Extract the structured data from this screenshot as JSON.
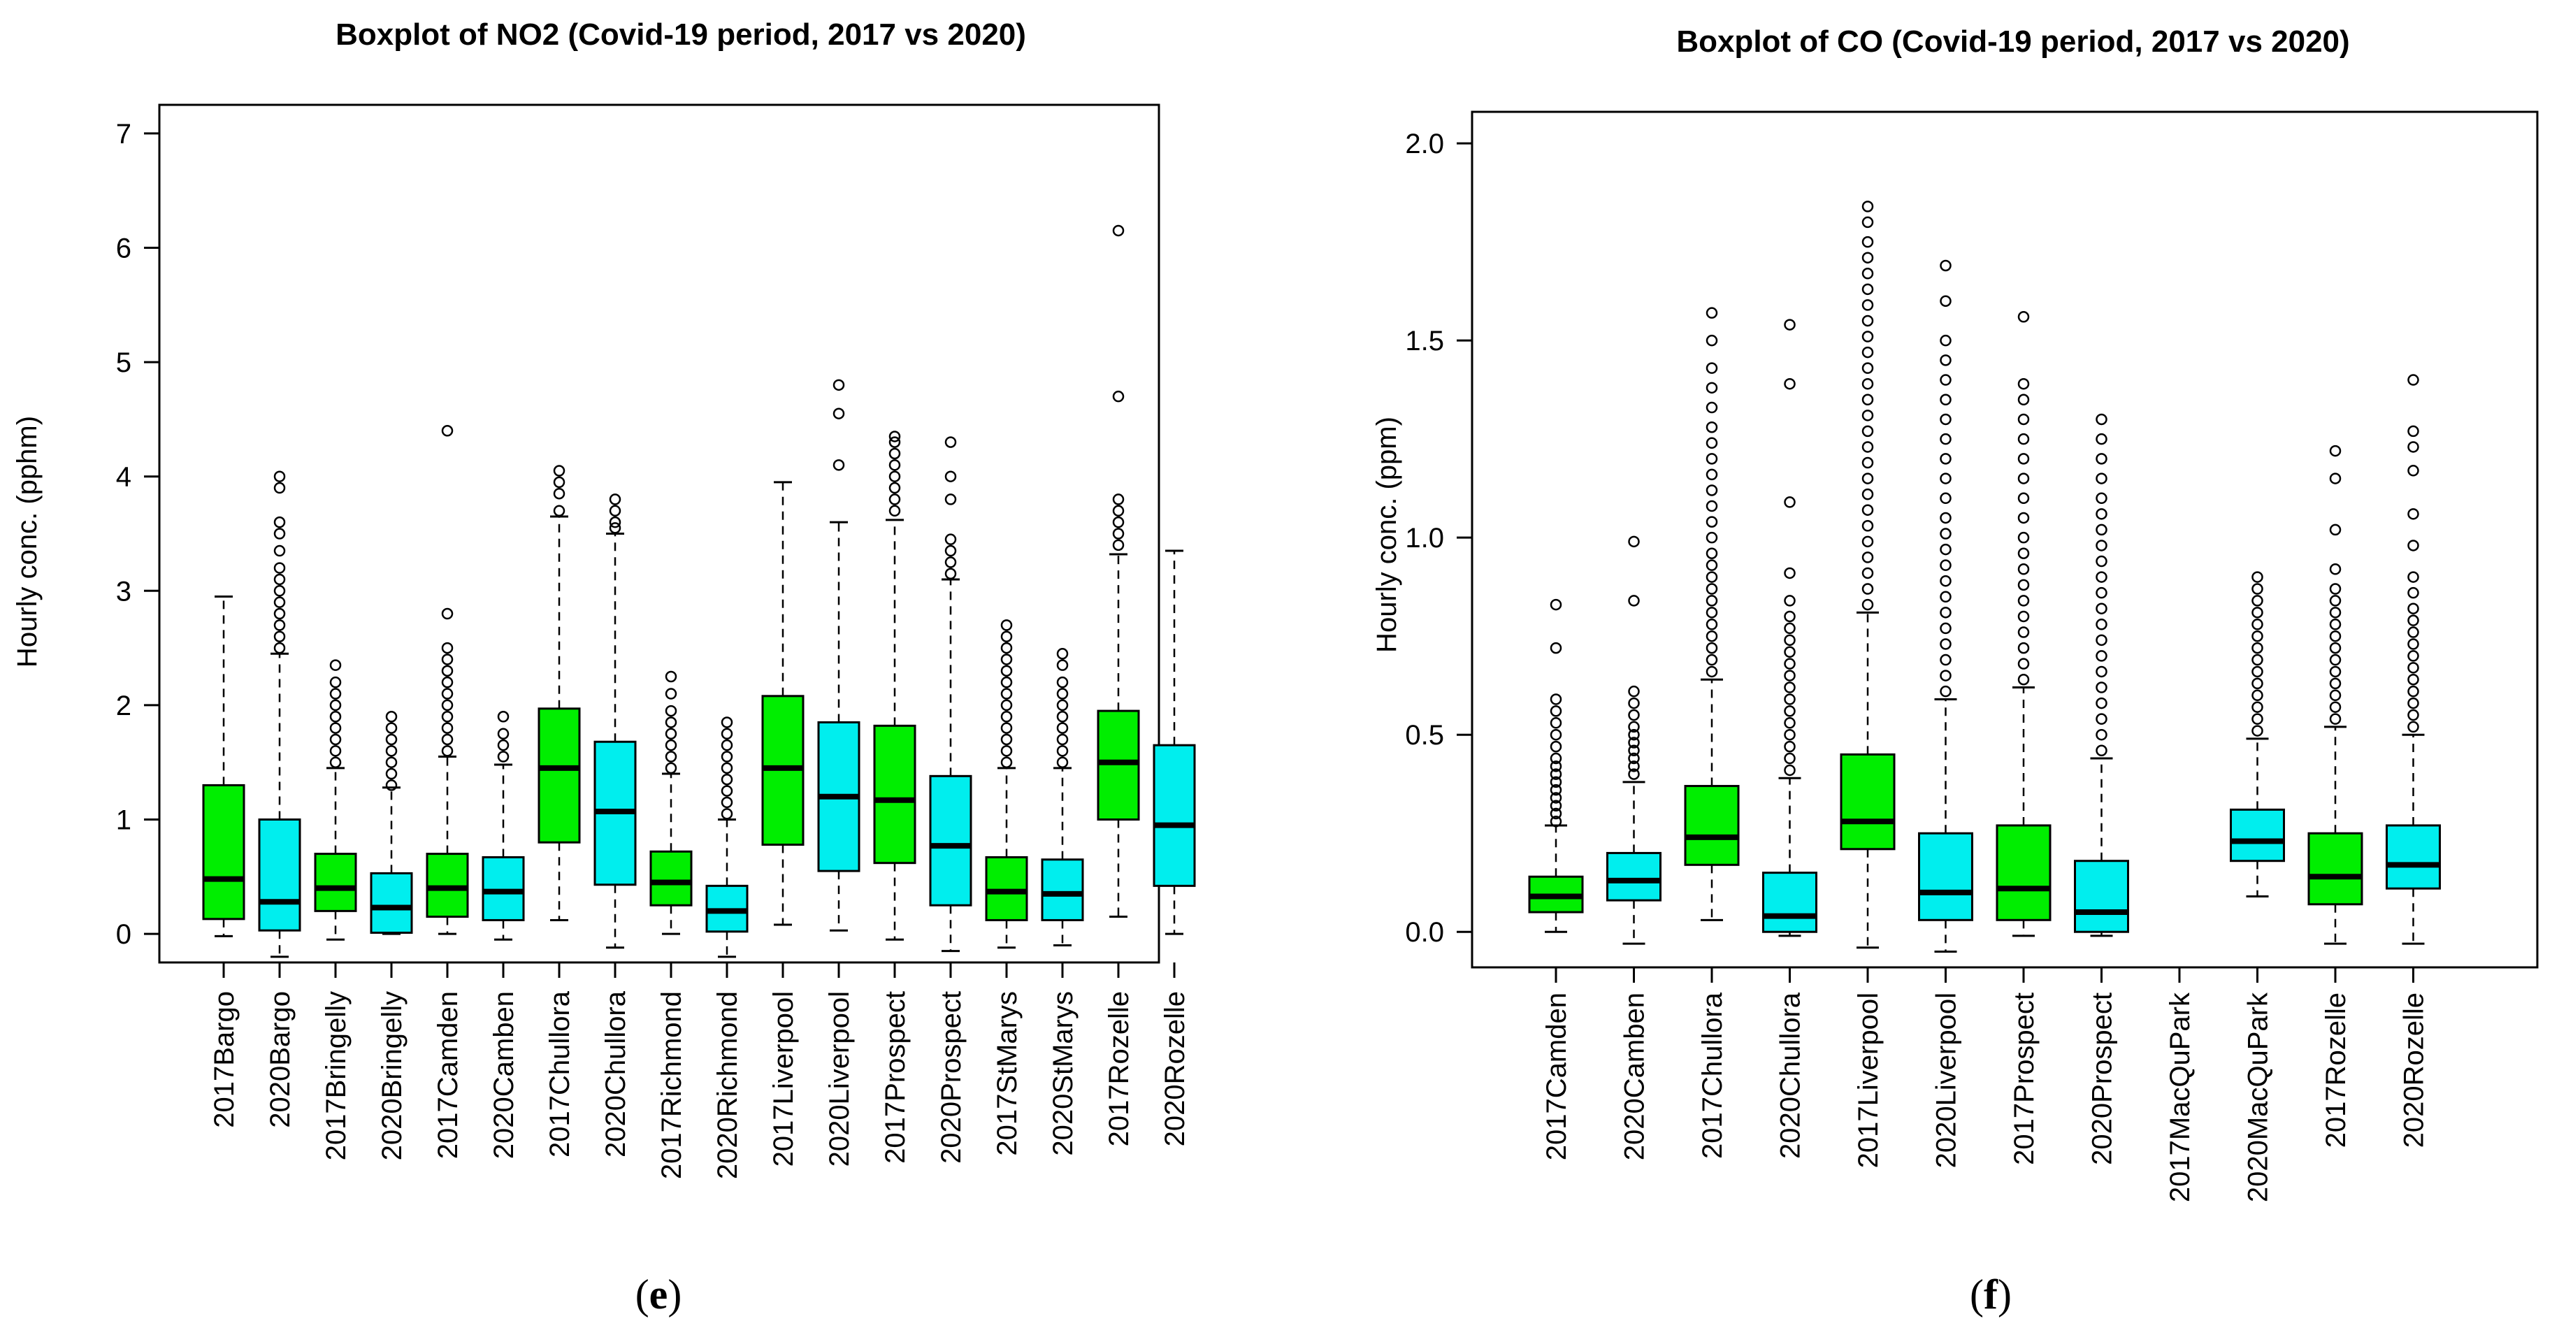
{
  "chart_data": [
    {
      "type": "boxplot",
      "panel": "e",
      "title": "Boxplot of NO2 (Covid-19 period, 2017 vs 2020)",
      "xlabel": "",
      "ylabel": "Hourly conc. (pphm)",
      "ylim": [
        -0.25,
        7.25
      ],
      "yticks": [
        0,
        1,
        2,
        3,
        4,
        5,
        6,
        7
      ],
      "categories": [
        "2017Bargo",
        "2020Bargo",
        "2017Bringelly",
        "2020Bringelly",
        "2017Camden",
        "2020Camben",
        "2017Chullora",
        "2020Chullora",
        "2017Richmond",
        "2020Richmond",
        "2017Liverpool",
        "2020Liverpool",
        "2017Prospect",
        "2020Prospect",
        "2017StMarys",
        "2020StMarys",
        "2017Rozelle",
        "2020Rozelle"
      ],
      "colors": [
        "#00ee00",
        "#00eeee",
        "#00ee00",
        "#00eeee",
        "#00ee00",
        "#00eeee",
        "#00ee00",
        "#00eeee",
        "#00ee00",
        "#00eeee",
        "#00ee00",
        "#00eeee",
        "#00ee00",
        "#00eeee",
        "#00ee00",
        "#00eeee",
        "#00ee00",
        "#00eeee"
      ],
      "boxes": [
        {
          "lw": -0.02,
          "q1": 0.13,
          "med": 0.48,
          "q3": 1.3,
          "uw": 2.95,
          "fliers": []
        },
        {
          "lw": -0.2,
          "q1": 0.03,
          "med": 0.28,
          "q3": 1.0,
          "uw": 2.45,
          "fliers": [
            2.5,
            2.6,
            2.7,
            2.8,
            2.9,
            3.0,
            3.1,
            3.2,
            3.35,
            3.5,
            3.6,
            3.9,
            4.0
          ]
        },
        {
          "lw": -0.05,
          "q1": 0.2,
          "med": 0.4,
          "q3": 0.7,
          "uw": 1.45,
          "fliers": [
            1.5,
            1.6,
            1.7,
            1.8,
            1.9,
            2.0,
            2.1,
            2.2,
            2.35
          ]
        },
        {
          "lw": 0.0,
          "q1": 0.01,
          "med": 0.23,
          "q3": 0.53,
          "uw": 1.28,
          "fliers": [
            1.3,
            1.4,
            1.5,
            1.6,
            1.7,
            1.8,
            1.9
          ]
        },
        {
          "lw": 0.0,
          "q1": 0.15,
          "med": 0.4,
          "q3": 0.7,
          "uw": 1.55,
          "fliers": [
            1.6,
            1.7,
            1.8,
            1.9,
            2.0,
            2.1,
            2.2,
            2.3,
            2.4,
            2.5,
            2.8,
            4.4
          ]
        },
        {
          "lw": -0.05,
          "q1": 0.12,
          "med": 0.37,
          "q3": 0.67,
          "uw": 1.48,
          "fliers": [
            1.55,
            1.65,
            1.75,
            1.9
          ]
        },
        {
          "lw": 0.12,
          "q1": 0.8,
          "med": 1.45,
          "q3": 1.97,
          "uw": 3.65,
          "fliers": [
            3.7,
            3.85,
            3.95,
            4.05
          ]
        },
        {
          "lw": -0.12,
          "q1": 0.43,
          "med": 1.07,
          "q3": 1.68,
          "uw": 3.5,
          "fliers": [
            3.55,
            3.6,
            3.7,
            3.8
          ]
        },
        {
          "lw": 0.0,
          "q1": 0.25,
          "med": 0.45,
          "q3": 0.72,
          "uw": 1.4,
          "fliers": [
            1.45,
            1.55,
            1.65,
            1.75,
            1.85,
            1.95,
            2.1,
            2.25
          ]
        },
        {
          "lw": -0.2,
          "q1": 0.02,
          "med": 0.2,
          "q3": 0.42,
          "uw": 1.0,
          "fliers": [
            1.05,
            1.15,
            1.25,
            1.35,
            1.45,
            1.55,
            1.65,
            1.75,
            1.85
          ]
        },
        {
          "lw": 0.08,
          "q1": 0.78,
          "med": 1.45,
          "q3": 2.08,
          "uw": 3.95,
          "fliers": []
        },
        {
          "lw": 0.03,
          "q1": 0.55,
          "med": 1.2,
          "q3": 1.85,
          "uw": 3.6,
          "fliers": [
            4.1,
            4.55,
            4.8
          ]
        },
        {
          "lw": -0.05,
          "q1": 0.62,
          "med": 1.17,
          "q3": 1.82,
          "uw": 3.62,
          "fliers": [
            3.7,
            3.8,
            3.9,
            4.0,
            4.1,
            4.2,
            4.3,
            4.35
          ]
        },
        {
          "lw": -0.15,
          "q1": 0.25,
          "med": 0.77,
          "q3": 1.38,
          "uw": 3.1,
          "fliers": [
            3.15,
            3.25,
            3.35,
            3.45,
            3.8,
            4.0,
            4.3
          ]
        },
        {
          "lw": -0.12,
          "q1": 0.12,
          "med": 0.37,
          "q3": 0.67,
          "uw": 1.45,
          "fliers": [
            1.5,
            1.6,
            1.7,
            1.8,
            1.9,
            2.0,
            2.1,
            2.2,
            2.3,
            2.4,
            2.5,
            2.6,
            2.7
          ]
        },
        {
          "lw": -0.1,
          "q1": 0.12,
          "med": 0.35,
          "q3": 0.65,
          "uw": 1.45,
          "fliers": [
            1.5,
            1.6,
            1.7,
            1.8,
            1.9,
            2.0,
            2.1,
            2.2,
            2.35,
            2.45
          ]
        },
        {
          "lw": 0.15,
          "q1": 1.0,
          "med": 1.5,
          "q3": 1.95,
          "uw": 3.32,
          "fliers": [
            3.4,
            3.5,
            3.6,
            3.7,
            3.8,
            4.7,
            6.15
          ]
        },
        {
          "lw": 0.0,
          "q1": 0.42,
          "med": 0.95,
          "q3": 1.65,
          "uw": 3.35,
          "fliers": []
        }
      ]
    },
    {
      "type": "boxplot",
      "panel": "f",
      "title": "Boxplot of CO (Covid-19 period, 2017 vs 2020)",
      "xlabel": "",
      "ylabel": "Hourly conc. (ppm)",
      "ylim": [
        -0.09,
        2.08
      ],
      "yticks": [
        0.0,
        0.5,
        1.0,
        1.5,
        2.0
      ],
      "ytick_labels": [
        "0.0",
        "0.5",
        "1.0",
        "1.5",
        "2.0"
      ],
      "categories": [
        "2017Camden",
        "2020Camben",
        "2017Chullora",
        "2020Chullora",
        "2017Liverpool",
        "2020Liverpool",
        "2017Prospect",
        "2020Prospect",
        "2017MacQuPark",
        "2020MacQuPark",
        "2017Rozelle",
        "2020Rozelle"
      ],
      "colors": [
        "#00ee00",
        "#00eeee",
        "#00ee00",
        "#00eeee",
        "#00ee00",
        "#00eeee",
        "#00ee00",
        "#00eeee",
        "#00ee00",
        "#00eeee",
        "#00ee00",
        "#00eeee"
      ],
      "boxes": [
        {
          "lw": 0.0,
          "q1": 0.05,
          "med": 0.09,
          "q3": 0.14,
          "uw": 0.27,
          "fliers": [
            0.28,
            0.3,
            0.32,
            0.34,
            0.36,
            0.38,
            0.4,
            0.42,
            0.44,
            0.47,
            0.5,
            0.53,
            0.56,
            0.59,
            0.72,
            0.83
          ]
        },
        {
          "lw": -0.03,
          "q1": 0.08,
          "med": 0.13,
          "q3": 0.2,
          "uw": 0.38,
          "fliers": [
            0.4,
            0.42,
            0.44,
            0.46,
            0.48,
            0.5,
            0.52,
            0.55,
            0.58,
            0.61,
            0.84,
            0.99
          ]
        },
        {
          "lw": 0.03,
          "q1": 0.17,
          "med": 0.24,
          "q3": 0.37,
          "uw": 0.64,
          "fliers": [
            0.66,
            0.69,
            0.72,
            0.75,
            0.78,
            0.81,
            0.84,
            0.87,
            0.9,
            0.93,
            0.96,
            1.0,
            1.04,
            1.08,
            1.12,
            1.16,
            1.2,
            1.24,
            1.28,
            1.33,
            1.38,
            1.43,
            1.5,
            1.57
          ]
        },
        {
          "lw": -0.01,
          "q1": 0.0,
          "med": 0.04,
          "q3": 0.15,
          "uw": 0.39,
          "fliers": [
            0.41,
            0.44,
            0.47,
            0.5,
            0.53,
            0.56,
            0.59,
            0.62,
            0.65,
            0.68,
            0.71,
            0.74,
            0.77,
            0.8,
            0.84,
            0.91,
            1.09,
            1.39,
            1.54
          ]
        },
        {
          "lw": -0.04,
          "q1": 0.21,
          "med": 0.28,
          "q3": 0.45,
          "uw": 0.81,
          "fliers": [
            0.83,
            0.87,
            0.91,
            0.95,
            0.99,
            1.03,
            1.07,
            1.11,
            1.15,
            1.19,
            1.23,
            1.27,
            1.31,
            1.35,
            1.39,
            1.43,
            1.47,
            1.51,
            1.55,
            1.59,
            1.63,
            1.67,
            1.71,
            1.75,
            1.8,
            1.84
          ]
        },
        {
          "lw": -0.05,
          "q1": 0.03,
          "med": 0.1,
          "q3": 0.25,
          "uw": 0.59,
          "fliers": [
            0.61,
            0.65,
            0.69,
            0.73,
            0.77,
            0.81,
            0.85,
            0.89,
            0.93,
            0.97,
            1.01,
            1.05,
            1.1,
            1.15,
            1.2,
            1.25,
            1.3,
            1.35,
            1.4,
            1.45,
            1.5,
            1.6,
            1.69
          ]
        },
        {
          "lw": -0.01,
          "q1": 0.03,
          "med": 0.11,
          "q3": 0.27,
          "uw": 0.62,
          "fliers": [
            0.64,
            0.68,
            0.72,
            0.76,
            0.8,
            0.84,
            0.88,
            0.92,
            0.96,
            1.0,
            1.05,
            1.1,
            1.15,
            1.2,
            1.25,
            1.3,
            1.35,
            1.39,
            1.56
          ]
        },
        {
          "lw": -0.01,
          "q1": 0.0,
          "med": 0.05,
          "q3": 0.18,
          "uw": 0.44,
          "fliers": [
            0.46,
            0.5,
            0.54,
            0.58,
            0.62,
            0.66,
            0.7,
            0.74,
            0.78,
            0.82,
            0.86,
            0.9,
            0.94,
            0.98,
            1.02,
            1.06,
            1.1,
            1.15,
            1.2,
            1.25,
            1.3
          ]
        },
        null,
        {
          "lw": 0.09,
          "q1": 0.18,
          "med": 0.23,
          "q3": 0.31,
          "uw": 0.49,
          "fliers": [
            0.51,
            0.54,
            0.57,
            0.6,
            0.63,
            0.66,
            0.69,
            0.72,
            0.75,
            0.78,
            0.81,
            0.84,
            0.87,
            0.9
          ]
        },
        {
          "lw": -0.03,
          "q1": 0.07,
          "med": 0.14,
          "q3": 0.25,
          "uw": 0.52,
          "fliers": [
            0.54,
            0.57,
            0.6,
            0.63,
            0.66,
            0.69,
            0.72,
            0.75,
            0.78,
            0.81,
            0.84,
            0.87,
            0.92,
            1.02,
            1.15,
            1.22
          ]
        },
        {
          "lw": -0.03,
          "q1": 0.11,
          "med": 0.17,
          "q3": 0.27,
          "uw": 0.5,
          "fliers": [
            0.52,
            0.55,
            0.58,
            0.61,
            0.64,
            0.67,
            0.7,
            0.73,
            0.76,
            0.79,
            0.82,
            0.86,
            0.9,
            0.98,
            1.06,
            1.17,
            1.23,
            1.27,
            1.4
          ]
        }
      ]
    }
  ],
  "panels": {
    "e": {
      "open": "(",
      "letter": "e",
      "close": ")"
    },
    "f": {
      "open": "(",
      "letter": "f",
      "close": ")"
    }
  }
}
